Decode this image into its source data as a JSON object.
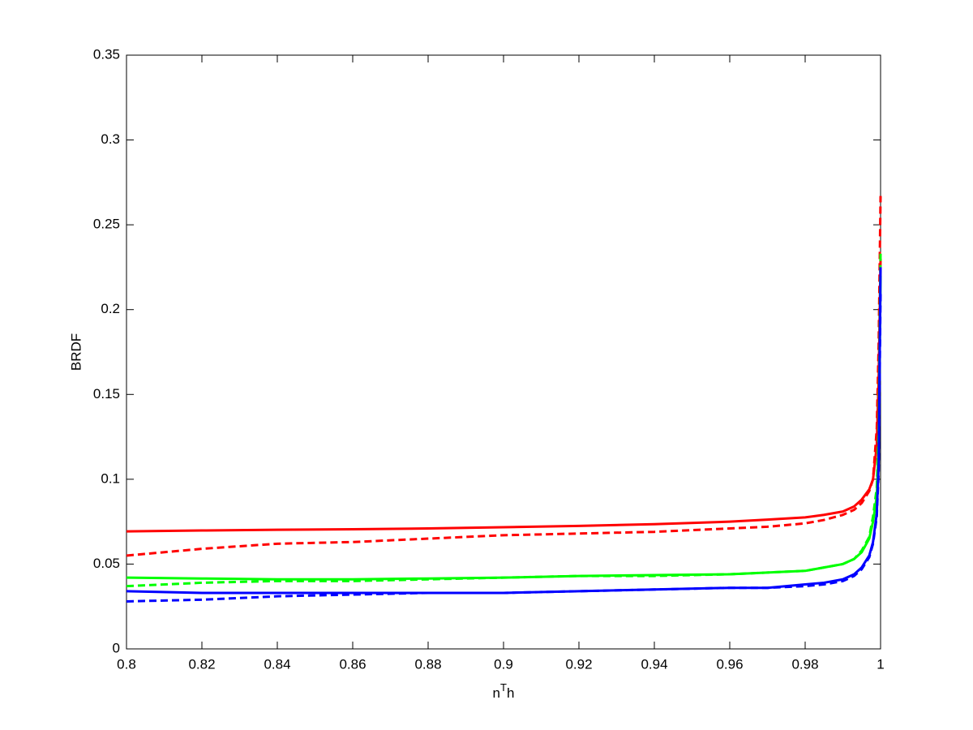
{
  "chart_data": {
    "type": "line",
    "xlabel_parts": [
      "n",
      "T",
      "h"
    ],
    "ylabel": "BRDF",
    "x": [
      0.8,
      0.82,
      0.84,
      0.86,
      0.88,
      0.9,
      0.92,
      0.94,
      0.96,
      0.97,
      0.98,
      0.985,
      0.99,
      0.993,
      0.995,
      0.997,
      0.998,
      0.999,
      0.9995,
      1.0
    ],
    "series": [
      {
        "color": "#ff0000",
        "dashed": false,
        "values": [
          0.0693,
          0.0698,
          0.0702,
          0.0705,
          0.071,
          0.0717,
          0.0725,
          0.0735,
          0.075,
          0.0762,
          0.0775,
          0.079,
          0.081,
          0.084,
          0.088,
          0.094,
          0.1,
          0.12,
          0.16,
          0.23
        ]
      },
      {
        "color": "#ff0000",
        "dashed": true,
        "values": [
          0.055,
          0.059,
          0.062,
          0.063,
          0.065,
          0.067,
          0.068,
          0.069,
          0.071,
          0.072,
          0.074,
          0.076,
          0.079,
          0.082,
          0.086,
          0.093,
          0.1,
          0.13,
          0.18,
          0.267
        ]
      },
      {
        "color": "#00ff00",
        "dashed": false,
        "values": [
          0.042,
          0.0415,
          0.041,
          0.041,
          0.0415,
          0.042,
          0.043,
          0.0435,
          0.044,
          0.045,
          0.046,
          0.048,
          0.05,
          0.053,
          0.057,
          0.065,
          0.075,
          0.09,
          0.12,
          0.22
        ]
      },
      {
        "color": "#00ff00",
        "dashed": true,
        "values": [
          0.037,
          0.039,
          0.04,
          0.04,
          0.041,
          0.042,
          0.043,
          0.043,
          0.044,
          0.045,
          0.046,
          0.048,
          0.05,
          0.053,
          0.058,
          0.066,
          0.078,
          0.095,
          0.13,
          0.235
        ]
      },
      {
        "color": "#0000ff",
        "dashed": false,
        "values": [
          0.034,
          0.033,
          0.033,
          0.033,
          0.033,
          0.033,
          0.034,
          0.035,
          0.036,
          0.036,
          0.038,
          0.039,
          0.041,
          0.044,
          0.048,
          0.055,
          0.063,
          0.08,
          0.11,
          0.225
        ]
      },
      {
        "color": "#0000ff",
        "dashed": true,
        "values": [
          0.028,
          0.029,
          0.031,
          0.032,
          0.033,
          0.033,
          0.034,
          0.035,
          0.036,
          0.036,
          0.037,
          0.038,
          0.04,
          0.043,
          0.047,
          0.054,
          0.062,
          0.078,
          0.105,
          0.21
        ]
      }
    ],
    "xlim": [
      0.8,
      1
    ],
    "xticks": [
      0.8,
      0.82,
      0.84,
      0.86,
      0.88,
      0.9,
      0.92,
      0.94,
      0.96,
      0.98,
      1
    ],
    "ylim": [
      0,
      0.35
    ],
    "yticks": [
      0,
      0.05,
      0.1,
      0.15,
      0.2,
      0.25,
      0.3,
      0.35
    ],
    "grid": false
  }
}
